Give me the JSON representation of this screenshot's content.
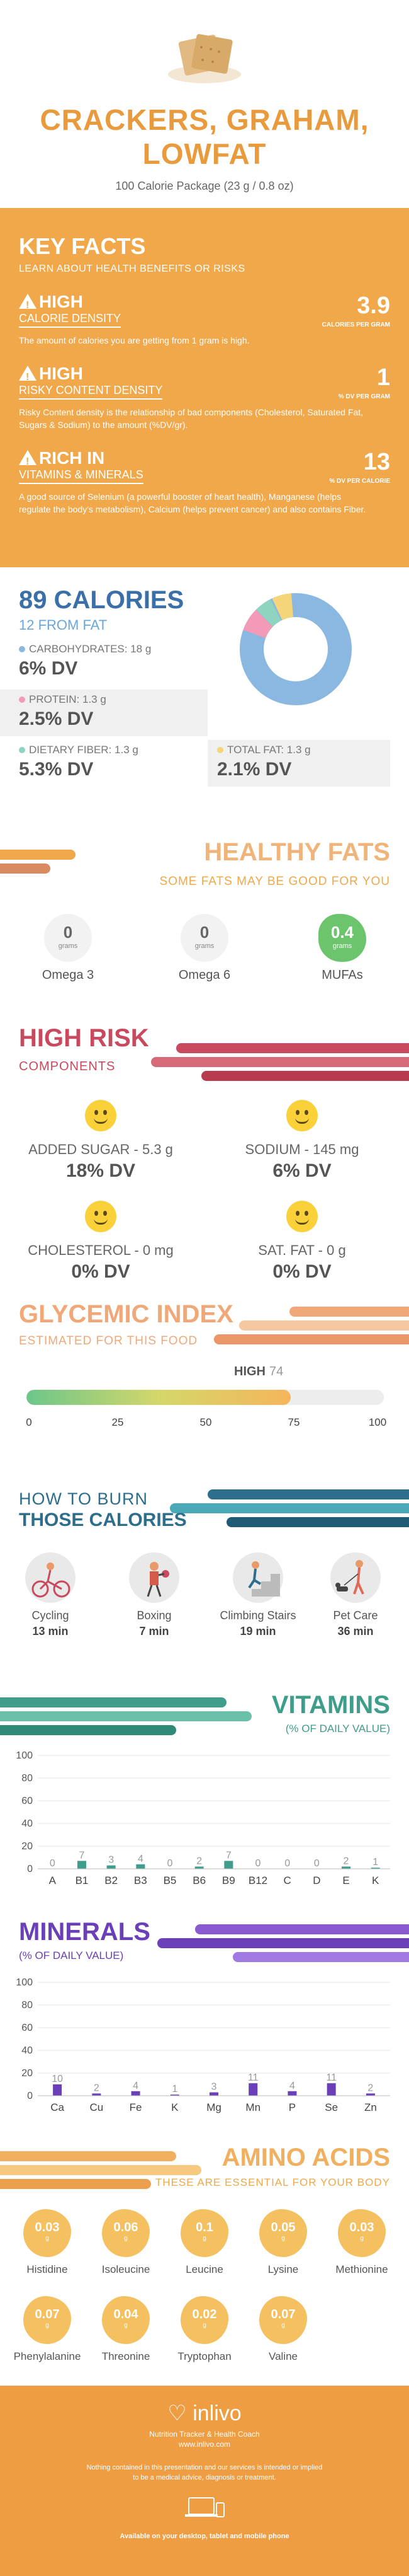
{
  "header": {
    "title_line1": "CRACKERS, GRAHAM,",
    "title_line2": "LOWFAT",
    "subtitle": "100 Calorie Package (23 g / 0.8 oz)"
  },
  "key_facts": {
    "title": "KEY FACTS",
    "lead": "LEARN ABOUT HEALTH BENEFITS OR RISKS",
    "items": [
      {
        "level": "HIGH",
        "name": "CALORIE DENSITY",
        "value": "3.9",
        "unit": "CALORIES PER GRAM",
        "desc": "The amount of calories you are getting from 1 gram is high."
      },
      {
        "level": "HIGH",
        "name": "RISKY CONTENT DENSITY",
        "value": "1",
        "unit": "% DV PER GRAM",
        "desc": "Risky Content density is the relationship of bad components (Cholesterol, Saturated Fat, Sugars & Sodium) to the amount (%DV/gr)."
      },
      {
        "level": "RICH IN",
        "name": "VITAMINS & MINERALS",
        "value": "13",
        "unit": "% DV PER CALORIE",
        "desc": "A good source of Selenium (a powerful booster of heart health), Manganese (helps regulate the body's metabolism), Calcium (helps prevent cancer) and also contains Fiber."
      }
    ]
  },
  "calories": {
    "title": "89 CALORIES",
    "from_fat": "12 FROM FAT",
    "nutrients": [
      {
        "label": "CARBOHYDRATES: 18 g",
        "dv": "6% DV",
        "color": "#8ab8e0"
      },
      {
        "label": "PROTEIN: 1.3 g",
        "dv": "2.5% DV",
        "color": "#f29ab8"
      },
      {
        "label": "DIETARY FIBER: 1.3 g",
        "dv": "5.3% DV",
        "color": "#8ed4c0"
      },
      {
        "label": "TOTAL FAT: 1.3 g",
        "dv": "2.1% DV",
        "color": "#f6d57a"
      }
    ]
  },
  "healthy_fats": {
    "title": "HEALTHY FATS",
    "subtitle": "SOME FATS MAY BE GOOD FOR YOU",
    "items": [
      {
        "value": "0",
        "unit": "grams",
        "label": "Omega 3"
      },
      {
        "value": "0",
        "unit": "grams",
        "label": "Omega 6"
      },
      {
        "value": "0.4",
        "unit": "grams",
        "label": "MUFAs"
      }
    ]
  },
  "high_risk": {
    "title": "HIGH RISK",
    "subtitle": "COMPONENTS",
    "items": [
      {
        "label": "ADDED SUGAR - 5.3 g",
        "dv": "18% DV"
      },
      {
        "label": "SODIUM - 145 mg",
        "dv": "6% DV"
      },
      {
        "label": "CHOLESTEROL - 0 mg",
        "dv": "0% DV"
      },
      {
        "label": "SAT. FAT - 0 g",
        "dv": "0% DV"
      }
    ]
  },
  "glycemic": {
    "title": "GLYCEMIC INDEX",
    "subtitle": "ESTIMATED FOR THIS FOOD",
    "level": "HIGH",
    "value": "74",
    "ticks": [
      "0",
      "25",
      "50",
      "75",
      "100"
    ]
  },
  "burn": {
    "title1": "HOW TO BURN",
    "title2": "THOSE CALORIES",
    "items": [
      {
        "label": "Cycling",
        "time": "13 min"
      },
      {
        "label": "Boxing",
        "time": "7 min"
      },
      {
        "label": "Climbing Stairs",
        "time": "19 min"
      },
      {
        "label": "Pet Care",
        "time": "36 min"
      }
    ]
  },
  "vitamins": {
    "title": "VITAMINS",
    "subtitle": "(% OF DAILY VALUE)",
    "chart_data": {
      "type": "bar",
      "categories": [
        "A",
        "B1",
        "B2",
        "B3",
        "B5",
        "B6",
        "B9",
        "B12",
        "C",
        "D",
        "E",
        "K"
      ],
      "values": [
        0,
        7,
        3,
        4,
        0,
        2,
        7,
        0,
        0,
        0,
        2,
        1
      ],
      "yticks": [
        "0",
        "20",
        "40",
        "60",
        "80",
        "100"
      ],
      "ylim": [
        0,
        100
      ],
      "color": "#3f9e8a"
    }
  },
  "minerals": {
    "title": "MINERALS",
    "subtitle": "(% OF DAILY VALUE)",
    "chart_data": {
      "type": "bar",
      "categories": [
        "Ca",
        "Cu",
        "Fe",
        "K",
        "Mg",
        "Mn",
        "P",
        "Se",
        "Zn"
      ],
      "values": [
        10,
        2,
        4,
        1,
        3,
        11,
        4,
        11,
        2
      ],
      "yticks": [
        "0",
        "20",
        "40",
        "60",
        "80",
        "100"
      ],
      "ylim": [
        0,
        100
      ],
      "color": "#6a3fb8"
    }
  },
  "amino": {
    "title": "AMINO ACIDS",
    "subtitle": "THESE ARE ESSENTIAL FOR YOUR BODY",
    "items": [
      {
        "value": "0.03",
        "label": "Histidine"
      },
      {
        "value": "0.06",
        "label": "Isoleucine"
      },
      {
        "value": "0.1",
        "label": "Leucine"
      },
      {
        "value": "0.05",
        "label": "Lysine"
      },
      {
        "value": "0.03",
        "label": "Methionine"
      },
      {
        "value": "0.07",
        "label": "Phenylalanine"
      },
      {
        "value": "0.04",
        "label": "Threonine"
      },
      {
        "value": "0.02",
        "label": "Tryptophan"
      },
      {
        "value": "0.07",
        "label": "Valine"
      }
    ],
    "unit": "g"
  },
  "footer": {
    "brand": "inlivo",
    "tagline": "Nutrition Tracker & Health Coach",
    "url": "www.inlivo.com",
    "disclaimer1": "Nothing contained in this presentation and our services is intended or implied",
    "disclaimer2": "to be a medical advice, diagnosis or treatment.",
    "available": "Available on your desktop, tablet and mobile phone"
  }
}
